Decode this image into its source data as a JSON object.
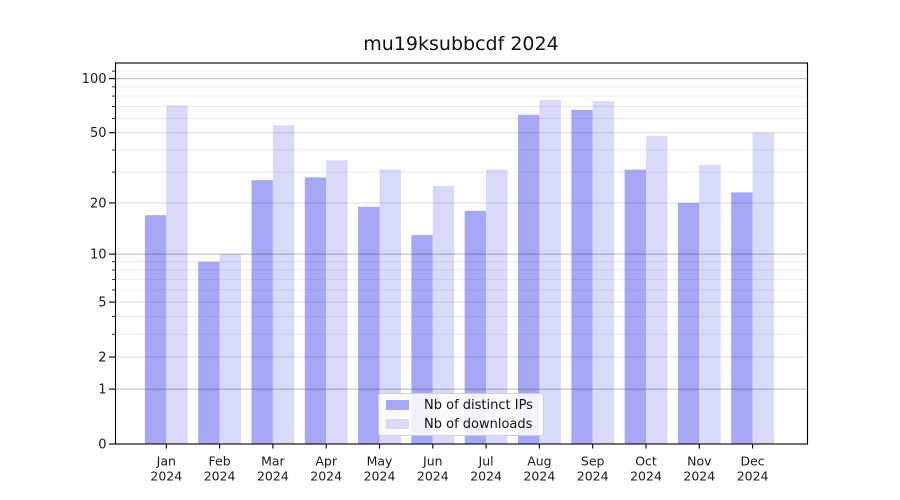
{
  "title": "mu19ksubbcdf 2024",
  "chart_data": {
    "type": "bar",
    "categories": [
      "Jan",
      "Feb",
      "Mar",
      "Apr",
      "May",
      "Jun",
      "Jul",
      "Aug",
      "Sep",
      "Oct",
      "Nov",
      "Dec"
    ],
    "x_year_label": "2024",
    "series": [
      {
        "name": "Nb of distinct IPs",
        "color": "#a7a7f7",
        "values": [
          17,
          9,
          27,
          28,
          19,
          13,
          18,
          63,
          67,
          31,
          20,
          23
        ]
      },
      {
        "name": "Nb of downloads",
        "color": "#d9d9f9",
        "values": [
          71,
          10,
          55,
          35,
          31,
          25,
          31,
          76,
          75,
          48,
          33,
          50
        ]
      }
    ],
    "yscale": "log1p",
    "yticks": [
      0,
      1,
      2,
      5,
      10,
      20,
      50,
      100
    ],
    "yticks_minor": [
      3,
      4,
      6,
      7,
      8,
      9,
      30,
      40,
      60,
      70,
      80,
      90,
      110
    ],
    "ylim": [
      0,
      122
    ],
    "grid": true,
    "legend_position": "lower center"
  }
}
